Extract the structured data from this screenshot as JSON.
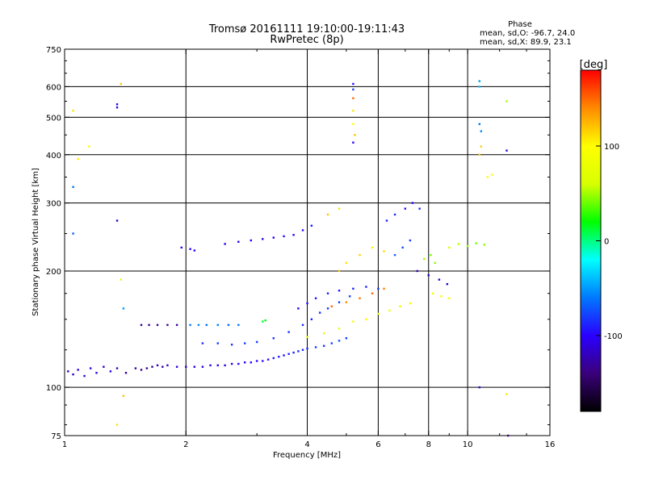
{
  "chart_data": {
    "type": "scatter",
    "title": "Tromsø 20161111 19:10:00-19:11:43",
    "subtitle": "RwPretec (8p)",
    "xlabel": "Frequency [MHz]",
    "ylabel": "Stationary phase Virtual Height [km]",
    "x_scale": "log",
    "y_scale": "log",
    "xlim": [
      1,
      16
    ],
    "ylim": [
      75,
      750
    ],
    "x_ticks": [
      1,
      2,
      4,
      6,
      8,
      10,
      16
    ],
    "x_tick_labels": [
      "1",
      "2",
      "4",
      "6",
      "8",
      "10",
      "16"
    ],
    "x_grid": [
      2,
      4,
      6,
      8,
      10
    ],
    "y_ticks": [
      75,
      100,
      200,
      300,
      400,
      500,
      600,
      750
    ],
    "y_tick_labels": [
      "75",
      "100",
      "200",
      "300",
      "400",
      "500",
      "600",
      "750"
    ],
    "y_grid": [
      100,
      200,
      300,
      400,
      500,
      600
    ],
    "grid": true,
    "stats": {
      "title": "Phase",
      "o_line": "mean, sd,O: -96.7, 24.0",
      "x_line": "mean, sd,X:  89.9, 23.1"
    },
    "colorbar": {
      "label": "[deg]",
      "range": [
        -180,
        180
      ],
      "ticks": [
        100,
        0,
        -100
      ],
      "tick_labels": [
        "100",
        "0",
        "-100"
      ],
      "colormap": [
        "#000000",
        "#3a007a",
        "#2a00ff",
        "#0078ff",
        "#00ffff",
        "#00ff00",
        "#d8ff00",
        "#ffff00",
        "#ff8a00",
        "#ff0000"
      ]
    },
    "series": [
      {
        "points": [
          [
            1.02,
            110,
            -120
          ],
          [
            1.05,
            108,
            -115
          ],
          [
            1.08,
            111,
            -110
          ],
          [
            1.12,
            107,
            -118
          ],
          [
            1.16,
            112,
            -105
          ],
          [
            1.2,
            109,
            -112
          ],
          [
            1.25,
            113,
            -120
          ],
          [
            1.3,
            110,
            -108
          ],
          [
            1.35,
            112,
            -125
          ],
          [
            1.42,
            109,
            -130
          ],
          [
            1.5,
            112,
            -128
          ],
          [
            1.55,
            111,
            -135
          ],
          [
            1.6,
            112,
            -132
          ],
          [
            1.65,
            113,
            -130
          ],
          [
            1.7,
            114,
            -125
          ],
          [
            1.75,
            113,
            -128
          ],
          [
            1.8,
            114,
            -120
          ],
          [
            1.9,
            113,
            -110
          ],
          [
            2.0,
            113,
            -112
          ],
          [
            2.1,
            113,
            -110
          ],
          [
            2.2,
            113,
            -108
          ],
          [
            2.3,
            114,
            -110
          ],
          [
            2.4,
            114,
            -105
          ],
          [
            2.5,
            114,
            -108
          ],
          [
            2.6,
            115,
            -104
          ],
          [
            2.7,
            115,
            -100
          ],
          [
            2.8,
            116,
            -102
          ],
          [
            2.9,
            116,
            -98
          ],
          [
            3.0,
            117,
            -100
          ],
          [
            3.1,
            117,
            -96
          ],
          [
            3.2,
            118,
            -95
          ],
          [
            3.3,
            119,
            -92
          ],
          [
            3.4,
            120,
            -90
          ],
          [
            3.5,
            121,
            -92
          ],
          [
            3.6,
            122,
            -88
          ],
          [
            3.7,
            123,
            -90
          ],
          [
            3.8,
            124,
            -86
          ],
          [
            3.9,
            125,
            -88
          ],
          [
            4.0,
            126,
            -84
          ],
          [
            4.2,
            127,
            -80
          ],
          [
            4.4,
            128,
            -82
          ],
          [
            4.6,
            130,
            -78
          ],
          [
            4.8,
            132,
            -76
          ],
          [
            5.0,
            134,
            -80
          ],
          [
            1.55,
            145,
            -130
          ],
          [
            1.62,
            145,
            -135
          ],
          [
            1.7,
            145,
            -128
          ],
          [
            1.8,
            145,
            -132
          ],
          [
            1.9,
            145,
            -130
          ],
          [
            2.05,
            145,
            -60
          ],
          [
            2.15,
            145,
            -55
          ],
          [
            2.25,
            145,
            -62
          ],
          [
            2.4,
            145,
            -58
          ],
          [
            2.55,
            145,
            -65
          ],
          [
            2.7,
            145,
            -60
          ],
          [
            3.1,
            148,
            10
          ],
          [
            3.15,
            149,
            20
          ],
          [
            1.95,
            230,
            -105
          ],
          [
            2.05,
            228,
            -100
          ],
          [
            2.1,
            226,
            -102
          ],
          [
            2.5,
            235,
            -110
          ],
          [
            2.7,
            238,
            -105
          ],
          [
            2.9,
            240,
            -100
          ],
          [
            3.1,
            242,
            -104
          ],
          [
            3.3,
            244,
            -100
          ],
          [
            3.5,
            246,
            -95
          ],
          [
            3.7,
            248,
            -98
          ],
          [
            3.9,
            255,
            -96
          ],
          [
            4.1,
            262,
            -92
          ],
          [
            2.2,
            130,
            -85
          ],
          [
            2.4,
            130,
            -80
          ],
          [
            2.6,
            129,
            -82
          ],
          [
            2.8,
            130,
            -78
          ],
          [
            3.0,
            131,
            -80
          ],
          [
            3.3,
            134,
            -82
          ],
          [
            3.6,
            139,
            -84
          ],
          [
            3.9,
            145,
            -86
          ],
          [
            4.1,
            150,
            -88
          ],
          [
            4.3,
            156,
            -84
          ],
          [
            4.5,
            160,
            -82
          ],
          [
            4.8,
            166,
            -80
          ],
          [
            5.1,
            172,
            -78
          ],
          [
            3.8,
            160,
            -100
          ],
          [
            4.0,
            165,
            -95
          ],
          [
            4.2,
            170,
            -92
          ],
          [
            4.5,
            175,
            -90
          ],
          [
            4.8,
            178,
            -94
          ],
          [
            5.2,
            180,
            -88
          ],
          [
            5.6,
            182,
            -90
          ],
          [
            6.0,
            180,
            -85
          ],
          [
            4.0,
            135,
            80
          ],
          [
            4.4,
            138,
            85
          ],
          [
            4.8,
            142,
            78
          ],
          [
            5.2,
            148,
            82
          ],
          [
            5.6,
            150,
            88
          ],
          [
            6.0,
            155,
            80
          ],
          [
            6.4,
            158,
            84
          ],
          [
            6.8,
            162,
            78
          ],
          [
            7.2,
            165,
            90
          ],
          [
            4.6,
            162,
            150
          ],
          [
            5.0,
            166,
            140
          ],
          [
            5.4,
            170,
            145
          ],
          [
            5.8,
            175,
            150
          ],
          [
            6.2,
            180,
            142
          ],
          [
            4.8,
            200,
            120
          ],
          [
            5.0,
            210,
            110
          ],
          [
            5.4,
            220,
            115
          ],
          [
            5.8,
            230,
            105
          ],
          [
            6.2,
            225,
            112
          ],
          [
            4.5,
            280,
            120
          ],
          [
            4.8,
            290,
            110
          ],
          [
            6.3,
            270,
            -90
          ],
          [
            6.6,
            280,
            -85
          ],
          [
            7.0,
            290,
            -95
          ],
          [
            7.3,
            300,
            -100
          ],
          [
            7.6,
            290,
            -88
          ],
          [
            6.6,
            220,
            -70
          ],
          [
            6.9,
            230,
            -75
          ],
          [
            7.2,
            240,
            -80
          ],
          [
            7.5,
            200,
            -120
          ],
          [
            8.0,
            195,
            -115
          ],
          [
            8.5,
            190,
            -110
          ],
          [
            8.9,
            185,
            -118
          ],
          [
            7.8,
            215,
            50
          ],
          [
            8.1,
            220,
            40
          ],
          [
            8.3,
            210,
            45
          ],
          [
            8.2,
            175,
            90
          ],
          [
            8.6,
            172,
            100
          ],
          [
            9.0,
            170,
            95
          ],
          [
            9.0,
            230,
            60
          ],
          [
            9.5,
            235,
            55
          ],
          [
            10.0,
            232,
            50
          ],
          [
            10.5,
            236,
            40
          ],
          [
            11.0,
            234,
            45
          ],
          [
            11.2,
            350,
            95
          ],
          [
            11.5,
            355,
            100
          ],
          [
            1.05,
            520,
            110
          ],
          [
            1.08,
            390,
            105
          ],
          [
            1.15,
            420,
            100
          ],
          [
            1.38,
            610,
            120
          ],
          [
            1.35,
            540,
            -115
          ],
          [
            1.35,
            530,
            -110
          ],
          [
            1.05,
            330,
            -60
          ],
          [
            1.05,
            250,
            -70
          ],
          [
            1.35,
            270,
            -120
          ],
          [
            1.38,
            190,
            80
          ],
          [
            1.4,
            160,
            -50
          ],
          [
            1.35,
            80,
            110
          ],
          [
            1.4,
            95,
            120
          ],
          [
            5.2,
            610,
            -95
          ],
          [
            5.2,
            590,
            -80
          ],
          [
            5.2,
            560,
            150
          ],
          [
            5.2,
            520,
            110
          ],
          [
            5.2,
            480,
            100
          ],
          [
            5.2,
            430,
            -100
          ],
          [
            5.25,
            450,
            120
          ],
          [
            10.7,
            620,
            -50
          ],
          [
            10.7,
            600,
            -40
          ],
          [
            10.7,
            480,
            -60
          ],
          [
            10.8,
            460,
            -55
          ],
          [
            10.7,
            400,
            120
          ],
          [
            10.8,
            420,
            115
          ],
          [
            12.5,
            550,
            50
          ],
          [
            12.5,
            410,
            -110
          ],
          [
            10.7,
            100,
            -110
          ],
          [
            12.5,
            96,
            110
          ],
          [
            12.6,
            75,
            -140
          ]
        ]
      }
    ]
  }
}
